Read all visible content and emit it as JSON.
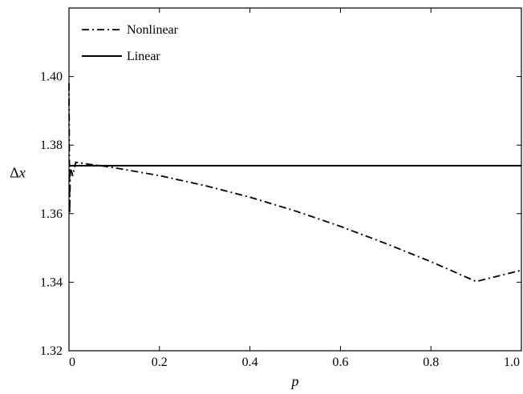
{
  "chart_data": {
    "type": "line",
    "xlabel": "p",
    "ylabel_prefix": "Δ",
    "ylabel_var": "x",
    "xlim": [
      0,
      1.0
    ],
    "ylim": [
      1.32,
      1.42
    ],
    "x_ticks": [
      "0",
      "0.2",
      "0.4",
      "0.6",
      "0.8",
      "1.0"
    ],
    "y_ticks": [
      "1.32",
      "1.34",
      "1.36",
      "1.38",
      "1.40"
    ],
    "grid": false,
    "legend_position": "top-left",
    "series": [
      {
        "name": "Nonlinear",
        "style": "dash-dot",
        "points": [
          [
            0.0,
            1.398
          ],
          [
            0.0015,
            1.36
          ],
          [
            0.003,
            1.374
          ],
          [
            0.008,
            1.371
          ],
          [
            0.015,
            1.375
          ],
          [
            0.04,
            1.3745
          ],
          [
            0.08,
            1.3738
          ],
          [
            0.1,
            1.3734
          ],
          [
            0.2,
            1.3711
          ],
          [
            0.3,
            1.3682
          ],
          [
            0.4,
            1.3648
          ],
          [
            0.5,
            1.3608
          ],
          [
            0.6,
            1.3563
          ],
          [
            0.7,
            1.3513
          ],
          [
            0.8,
            1.346
          ],
          [
            0.9,
            1.3402
          ],
          [
            1.0,
            1.3435
          ]
        ]
      },
      {
        "name": "Linear",
        "style": "solid",
        "points": [
          [
            0.0,
            1.374
          ],
          [
            1.0,
            1.374
          ]
        ]
      }
    ]
  }
}
